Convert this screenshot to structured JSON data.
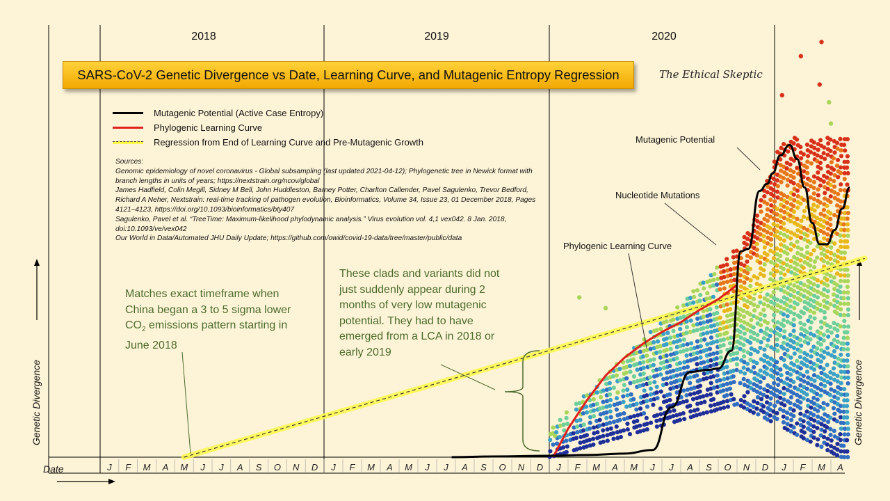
{
  "title": "SARS-CoV-2 Genetic Divergence vs Date, Learning Curve, and Mutagenic Entropy Regression",
  "brand": "The Ethical Skeptic",
  "years": [
    "2018",
    "2019",
    "2020"
  ],
  "legend": [
    {
      "label": "Mutagenic Potential (Active Case Entropy)",
      "style": "black"
    },
    {
      "label": "Phylogenic Learning Curve",
      "style": "red"
    },
    {
      "label": "Regression from End of Learning Curve and Pre-Mutagenic Growth",
      "style": "dashed"
    }
  ],
  "sources": {
    "heading": "Sources:",
    "lines": [
      "Genomic epidemiology of novel coronavirus  - Global subsampling (last updated 2021-04-12); Phylogenetic tree in Newick format with branch lengths in units of years; https://nextstrain.org/ncov/global",
      "James Hadfield, Colin Megill, Sidney M Bell, John Huddleston, Barney Potter, Charlton Callender, Pavel Sagulenko, Trevor Bedford, Richard A Neher, Nextstrain: real-time tracking of pathogen evolution, Bioinformatics, Volume 34, Issue 23, 01 December 2018, Pages 4121–4123, https://doi.org/10.1093/bioinformatics/bty407",
      "Sagulenko, Pavel et al. “TreeTime: Maximum-likelihood phylodynamic analysis.” Virus evolution vol. 4,1 vex042. 8 Jan. 2018, doi:10.1093/ve/vex042",
      "Our World in Data/Automated JHU Daily Update; https://github.com/owid/covid-19-data/tree/master/public/data"
    ]
  },
  "notes": {
    "left_pre": "Matches exact timeframe when China began a 3 to 5 sigma lower CO",
    "left_sub": "2",
    "left_post": " emissions pattern starting in June 2018",
    "mid": "These clads and variants did not just suddenly appear during 2 months of very low mutagenic potential. They had to have emerged from a LCA in 2018 or early 2019"
  },
  "annotations": {
    "mutagenic": "Mutagenic Potential",
    "nucleotide": "Nucleotide Mutations",
    "phylogenic": "Phylogenic Learning Curve"
  },
  "axes": {
    "ylabel": "Genetic Divergence",
    "xlabel": "Date"
  },
  "chart_data": {
    "type": "scatter",
    "x_ticks": [
      "J",
      "F",
      "M",
      "A",
      "M",
      "J",
      "J",
      "A",
      "S",
      "O",
      "N",
      "D",
      "J",
      "F",
      "M",
      "A",
      "M",
      "J",
      "J",
      "A",
      "S",
      "O",
      "N",
      "D",
      "J",
      "F",
      "M",
      "A",
      "M",
      "J",
      "J",
      "A",
      "S",
      "O",
      "N",
      "D",
      "J",
      "F",
      "M",
      "A"
    ],
    "x_range": [
      "2018-01",
      "2021-04"
    ],
    "colors": {
      "mutagenic": "#000000",
      "learning": "#e0201b",
      "regression_fill": "#fff94a",
      "points": [
        "#1f2f9a",
        "#2f6ec2",
        "#3aa0c6",
        "#6ecf9a",
        "#a9d65a",
        "#e8b81a",
        "#e8761a",
        "#d9301a"
      ]
    },
    "series": [
      {
        "name": "Mutagenic Potential (Active Case Entropy)",
        "type": "line",
        "x_month": [
          18.8,
          21,
          24,
          26,
          28,
          29.5,
          30.5,
          31.5,
          32.5,
          33,
          33.7,
          34.2,
          34.6,
          35.2,
          35.6,
          35.9,
          36.3,
          36.8,
          37.2,
          37.6,
          38.0,
          38.4,
          38.8,
          39.2,
          39.6,
          40.0
        ],
        "y": [
          0,
          0.2,
          0.4,
          0.6,
          1,
          2,
          14,
          24,
          24.6,
          25,
          30,
          58,
          58.7,
          75,
          77,
          80,
          85,
          88,
          84,
          76,
          66,
          60,
          60,
          64,
          70,
          76
        ]
      },
      {
        "name": "Phylogenic Learning Curve",
        "type": "line",
        "x_month": [
          24.2,
          25,
          26,
          27,
          28,
          29,
          30,
          31,
          32,
          33,
          34
        ],
        "y": [
          0,
          8,
          16,
          23,
          28,
          32,
          35.3,
          38,
          41.5,
          44.5,
          48.5
        ]
      },
      {
        "name": "Regression from End of Learning Curve and Pre-Mutagenic Growth",
        "type": "line",
        "x_month": [
          4.5,
          40.8
        ],
        "y": [
          0,
          56
        ]
      },
      {
        "name": "Nucleotide Mutations",
        "type": "scatter",
        "x_month_range": [
          24,
          40
        ],
        "y_range": [
          0,
          108
        ]
      }
    ],
    "ylabel": "Genetic Divergence",
    "xlabel": "Date"
  }
}
